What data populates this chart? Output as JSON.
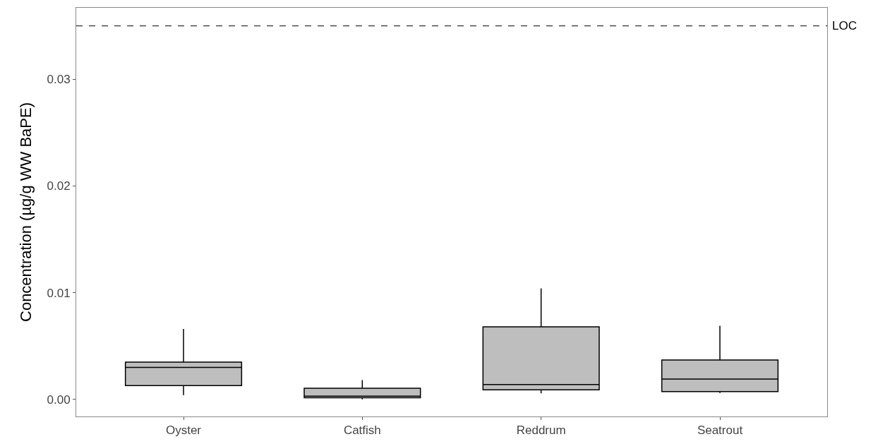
{
  "chart_data": {
    "type": "box",
    "ylabel": "Concentration (µg/g WW BaPE)",
    "categories": [
      "Oyster",
      "Catfish",
      "Reddrum",
      "Seatrout"
    ],
    "boxes": [
      {
        "low": 0.0004,
        "q1": 0.0013,
        "median": 0.003,
        "q3": 0.0035,
        "high": 0.0066
      },
      {
        "low": 0.0,
        "q1": 0.00016,
        "median": 0.0003,
        "q3": 0.00105,
        "high": 0.0018
      },
      {
        "low": 0.00056,
        "q1": 0.0009,
        "median": 0.0014,
        "q3": 0.0068,
        "high": 0.0104
      },
      {
        "low": 0.0006,
        "q1": 0.00074,
        "median": 0.0019,
        "q3": 0.0037,
        "high": 0.0069
      }
    ],
    "color": "#bebebe",
    "ylim": [
      -0.0016,
      0.0367
    ],
    "yticks": [
      {
        "value": 0,
        "label": "0.00"
      },
      {
        "value": 0.01,
        "label": "0.01"
      },
      {
        "value": 0.02,
        "label": "0.02"
      },
      {
        "value": 0.03,
        "label": "0.03"
      }
    ],
    "ref_lines": [
      {
        "axis": "y",
        "value": 0.035,
        "label": "LOC",
        "line_style": "dashed",
        "color": "#000000"
      }
    ],
    "legend": false
  }
}
